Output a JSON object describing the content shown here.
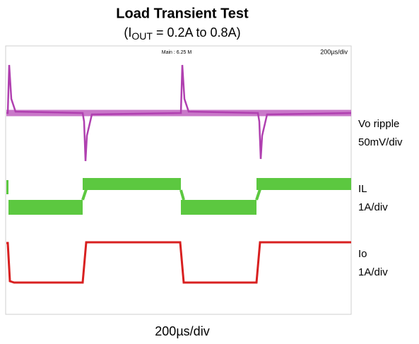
{
  "header": {
    "title": "Load Transient Test",
    "subtitle": {
      "prefix": "(I",
      "subscript": "OUT",
      "suffix": " = 0.2A to 0.8A)"
    }
  },
  "scope": {
    "info": "Main : 6.25 M",
    "timebase": "200µs/div"
  },
  "traces": [
    {
      "name": "Vo ripple",
      "scale": "50mV/div"
    },
    {
      "name": "IL",
      "scale": "1A/div"
    },
    {
      "name": "Io",
      "scale": "1A/div"
    }
  ],
  "footer": "200µs/div"
}
